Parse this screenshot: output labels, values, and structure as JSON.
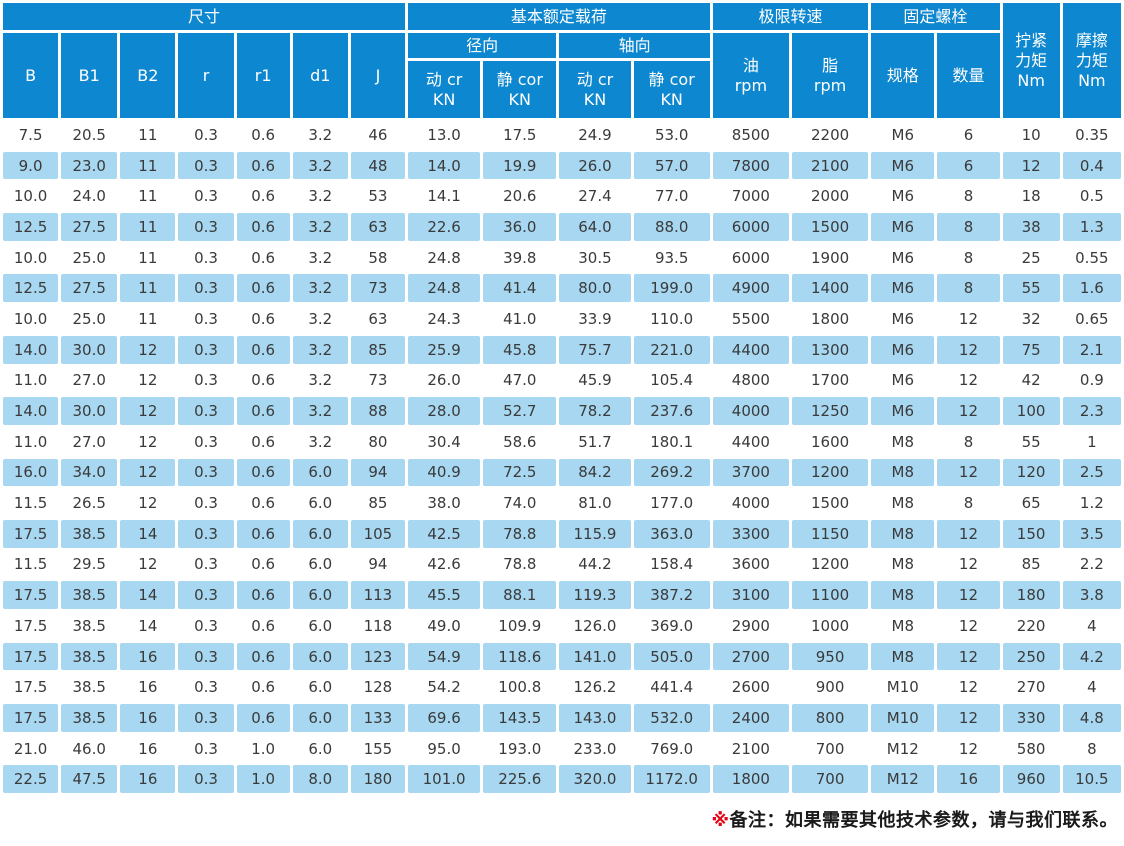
{
  "colors": {
    "header_blue": "#0D87CF",
    "row_blue": "#A7D7F1",
    "text_dark": "#3A3A3A",
    "note_red": "#E60012",
    "note_dark": "#1A1A1A"
  },
  "table": {
    "groups": {
      "size": "尺寸",
      "load": "基本额定载荷",
      "speed": "极限转速",
      "bolt": "固定螺栓",
      "tighten_torque": "拧紧\n力矩\nNm",
      "friction_torque": "摩擦\n力矩\nNm"
    },
    "subgroups": {
      "radial": "径向",
      "axial": "轴向"
    },
    "columns": {
      "B": "B",
      "B1": "B1",
      "B2": "B2",
      "r": "r",
      "r1": "r1",
      "d1": "d1",
      "J": "J",
      "dyn_cr_radial": "动 cr\nKN",
      "sta_cor_radial": "静 cor\nKN",
      "dyn_cr_axial": "动 cr\nKN",
      "sta_cor_axial": "静 cor\nKN",
      "oil": "油\nrpm",
      "grease": "脂\nrpm",
      "spec": "规格",
      "qty": "数量"
    },
    "rows": [
      [
        "7.5",
        "20.5",
        "11",
        "0.3",
        "0.6",
        "3.2",
        "46",
        "13.0",
        "17.5",
        "24.9",
        "53.0",
        "8500",
        "2200",
        "M6",
        "6",
        "10",
        "0.35"
      ],
      [
        "9.0",
        "23.0",
        "11",
        "0.3",
        "0.6",
        "3.2",
        "48",
        "14.0",
        "19.9",
        "26.0",
        "57.0",
        "7800",
        "2100",
        "M6",
        "6",
        "12",
        "0.4"
      ],
      [
        "10.0",
        "24.0",
        "11",
        "0.3",
        "0.6",
        "3.2",
        "53",
        "14.1",
        "20.6",
        "27.4",
        "77.0",
        "7000",
        "2000",
        "M6",
        "8",
        "18",
        "0.5"
      ],
      [
        "12.5",
        "27.5",
        "11",
        "0.3",
        "0.6",
        "3.2",
        "63",
        "22.6",
        "36.0",
        "64.0",
        "88.0",
        "6000",
        "1500",
        "M6",
        "8",
        "38",
        "1.3"
      ],
      [
        "10.0",
        "25.0",
        "11",
        "0.3",
        "0.6",
        "3.2",
        "58",
        "24.8",
        "39.8",
        "30.5",
        "93.5",
        "6000",
        "1900",
        "M6",
        "8",
        "25",
        "0.55"
      ],
      [
        "12.5",
        "27.5",
        "11",
        "0.3",
        "0.6",
        "3.2",
        "73",
        "24.8",
        "41.4",
        "80.0",
        "199.0",
        "4900",
        "1400",
        "M6",
        "8",
        "55",
        "1.6"
      ],
      [
        "10.0",
        "25.0",
        "11",
        "0.3",
        "0.6",
        "3.2",
        "63",
        "24.3",
        "41.0",
        "33.9",
        "110.0",
        "5500",
        "1800",
        "M6",
        "12",
        "32",
        "0.65"
      ],
      [
        "14.0",
        "30.0",
        "12",
        "0.3",
        "0.6",
        "3.2",
        "85",
        "25.9",
        "45.8",
        "75.7",
        "221.0",
        "4400",
        "1300",
        "M6",
        "12",
        "75",
        "2.1"
      ],
      [
        "11.0",
        "27.0",
        "12",
        "0.3",
        "0.6",
        "3.2",
        "73",
        "26.0",
        "47.0",
        "45.9",
        "105.4",
        "4800",
        "1700",
        "M6",
        "12",
        "42",
        "0.9"
      ],
      [
        "14.0",
        "30.0",
        "12",
        "0.3",
        "0.6",
        "3.2",
        "88",
        "28.0",
        "52.7",
        "78.2",
        "237.6",
        "4000",
        "1250",
        "M6",
        "12",
        "100",
        "2.3"
      ],
      [
        "11.0",
        "27.0",
        "12",
        "0.3",
        "0.6",
        "3.2",
        "80",
        "30.4",
        "58.6",
        "51.7",
        "180.1",
        "4400",
        "1600",
        "M8",
        "8",
        "55",
        "1"
      ],
      [
        "16.0",
        "34.0",
        "12",
        "0.3",
        "0.6",
        "6.0",
        "94",
        "40.9",
        "72.5",
        "84.2",
        "269.2",
        "3700",
        "1200",
        "M8",
        "12",
        "120",
        "2.5"
      ],
      [
        "11.5",
        "26.5",
        "12",
        "0.3",
        "0.6",
        "6.0",
        "85",
        "38.0",
        "74.0",
        "81.0",
        "177.0",
        "4000",
        "1500",
        "M8",
        "8",
        "65",
        "1.2"
      ],
      [
        "17.5",
        "38.5",
        "14",
        "0.3",
        "0.6",
        "6.0",
        "105",
        "42.5",
        "78.8",
        "115.9",
        "363.0",
        "3300",
        "1150",
        "M8",
        "12",
        "150",
        "3.5"
      ],
      [
        "11.5",
        "29.5",
        "12",
        "0.3",
        "0.6",
        "6.0",
        "94",
        "42.6",
        "78.8",
        "44.2",
        "158.4",
        "3600",
        "1200",
        "M8",
        "12",
        "85",
        "2.2"
      ],
      [
        "17.5",
        "38.5",
        "14",
        "0.3",
        "0.6",
        "6.0",
        "113",
        "45.5",
        "88.1",
        "119.3",
        "387.2",
        "3100",
        "1100",
        "M8",
        "12",
        "180",
        "3.8"
      ],
      [
        "17.5",
        "38.5",
        "14",
        "0.3",
        "0.6",
        "6.0",
        "118",
        "49.0",
        "109.9",
        "126.0",
        "369.0",
        "2900",
        "1000",
        "M8",
        "12",
        "220",
        "4"
      ],
      [
        "17.5",
        "38.5",
        "16",
        "0.3",
        "0.6",
        "6.0",
        "123",
        "54.9",
        "118.6",
        "141.0",
        "505.0",
        "2700",
        "950",
        "M8",
        "12",
        "250",
        "4.2"
      ],
      [
        "17.5",
        "38.5",
        "16",
        "0.3",
        "0.6",
        "6.0",
        "128",
        "54.2",
        "100.8",
        "126.2",
        "441.4",
        "2600",
        "900",
        "M10",
        "12",
        "270",
        "4"
      ],
      [
        "17.5",
        "38.5",
        "16",
        "0.3",
        "0.6",
        "6.0",
        "133",
        "69.6",
        "143.5",
        "143.0",
        "532.0",
        "2400",
        "800",
        "M10",
        "12",
        "330",
        "4.8"
      ],
      [
        "21.0",
        "46.0",
        "16",
        "0.3",
        "1.0",
        "6.0",
        "155",
        "95.0",
        "193.0",
        "233.0",
        "769.0",
        "2100",
        "700",
        "M12",
        "12",
        "580",
        "8"
      ],
      [
        "22.5",
        "47.5",
        "16",
        "0.3",
        "1.0",
        "8.0",
        "180",
        "101.0",
        "225.6",
        "320.0",
        "1172.0",
        "1800",
        "700",
        "M12",
        "16",
        "960",
        "10.5"
      ]
    ]
  },
  "note": {
    "marker": "※",
    "text": "备注：如果需要其他技术参数，请与我们联系。"
  }
}
